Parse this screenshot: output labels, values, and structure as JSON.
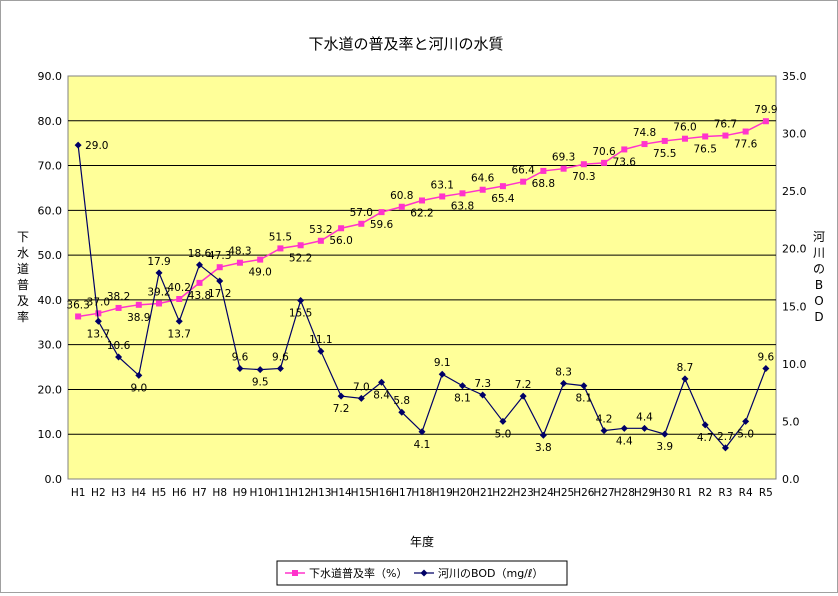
{
  "chart_data": {
    "type": "line",
    "title": "下水道の普及率と河川の水質",
    "xlabel": "年度",
    "ylabel_left": "下水道普及率",
    "ylabel_right": "河川のBOD",
    "categories": [
      "H1",
      "H2",
      "H3",
      "H4",
      "H5",
      "H6",
      "H7",
      "H8",
      "H9",
      "H10",
      "H11",
      "H12",
      "H13",
      "H14",
      "H15",
      "H16",
      "H17",
      "H18",
      "H19",
      "H20",
      "H21",
      "H22",
      "H23",
      "H24",
      "H25",
      "H26",
      "H27",
      "H28",
      "H29",
      "H30",
      "R1",
      "R2",
      "R3",
      "R4",
      "R5"
    ],
    "y_left": {
      "min": 0,
      "max": 90,
      "step": 10,
      "tick_labels": [
        "0.0",
        "10.0",
        "20.0",
        "30.0",
        "40.0",
        "50.0",
        "60.0",
        "70.0",
        "80.0",
        "90.0"
      ]
    },
    "y_right": {
      "min": 0,
      "max": 35,
      "step": 5,
      "tick_labels": [
        "0.0",
        "5.0",
        "10.0",
        "15.0",
        "20.0",
        "25.0",
        "30.0",
        "35.0"
      ]
    },
    "series": [
      {
        "name": "下水道普及率（%）",
        "axis": "left",
        "color": "#ff33cc",
        "marker": "square",
        "values": [
          36.3,
          37.0,
          38.2,
          38.9,
          39.2,
          40.2,
          43.8,
          47.3,
          48.3,
          49.0,
          51.5,
          52.2,
          53.2,
          56.0,
          57.0,
          59.6,
          60.8,
          62.2,
          63.1,
          63.8,
          64.6,
          65.4,
          66.4,
          68.8,
          69.3,
          70.3,
          70.6,
          73.6,
          74.8,
          75.5,
          76.0,
          76.5,
          76.7,
          77.6,
          79.9
        ],
        "labels": [
          "36.3",
          "37.0",
          "38.2",
          "38.9",
          "39.2",
          "40.2",
          "43.8",
          "47.3",
          "48.3",
          "49.0",
          "51.5",
          "52.2",
          "53.2",
          "56.0",
          "57.0",
          "59.6",
          "60.8",
          "62.2",
          "63.1",
          "63.8",
          "64.6",
          "65.4",
          "66.4",
          "68.8",
          "69.3",
          "70.3",
          "70.6",
          "73.6",
          "74.8",
          "75.5",
          "76.0",
          "76.5",
          "76.7",
          "77.6",
          "79.9"
        ]
      },
      {
        "name": "河川のBOD（mg/ℓ）",
        "axis": "right",
        "color": "#000066",
        "marker": "diamond",
        "values": [
          29.0,
          13.7,
          10.6,
          9.0,
          17.9,
          13.7,
          18.6,
          17.2,
          9.6,
          9.5,
          9.6,
          15.5,
          11.1,
          7.2,
          7.0,
          8.4,
          5.8,
          4.1,
          9.1,
          8.1,
          7.3,
          5.0,
          7.2,
          3.8,
          8.3,
          8.1,
          4.2,
          4.4,
          4.4,
          3.9,
          8.7,
          4.7,
          2.7,
          5.0,
          9.6
        ],
        "labels": [
          "29.0",
          "13.7",
          "10.6",
          "9.0",
          "17.9",
          "13.7",
          "18.6",
          "17.2",
          "9.6",
          "9.5",
          "9.6",
          "15.5",
          "11.1",
          "7.2",
          "7.0",
          "8.4",
          "5.8",
          "4.1",
          "9.1",
          "8.1",
          "7.3",
          "5.0",
          "7.2",
          "3.8",
          "8.3",
          "8.1",
          "4.2",
          "4.4",
          "4.4",
          "3.9",
          "8.7",
          "4.7",
          "2.7",
          "5.0",
          "9.6"
        ]
      }
    ],
    "legend": {
      "position": "bottom",
      "entries": [
        "下水道普及率（%）",
        "河川のBOD（mg/ℓ）"
      ]
    },
    "grid": true,
    "plot_background": "#ffff99"
  }
}
